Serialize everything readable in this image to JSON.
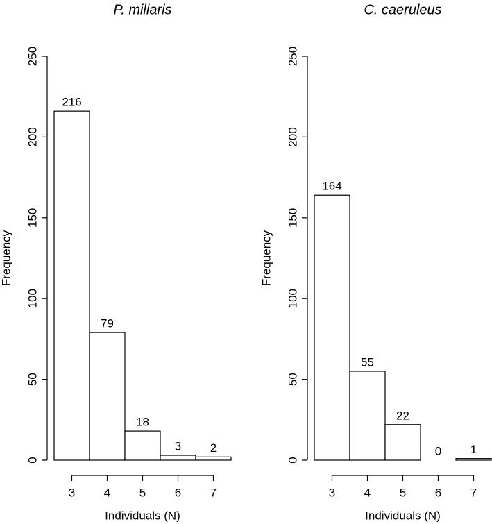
{
  "chart_data": [
    {
      "type": "bar",
      "title": "P. miliaris",
      "x_label": "Individuals (N)",
      "y_label": "Frequency",
      "categories": [
        "3",
        "4",
        "5",
        "6",
        "7"
      ],
      "values": [
        216,
        79,
        18,
        3,
        2
      ],
      "color": "#ffffff",
      "edge_color": "#000000",
      "ylim": [
        0,
        250
      ],
      "yticks": [
        0,
        50,
        100,
        150,
        200,
        250
      ]
    },
    {
      "type": "bar",
      "title": "C. caeruleus",
      "x_label": "Individuals (N)",
      "y_label": "Frequency",
      "categories": [
        "3",
        "4",
        "5",
        "6",
        "7"
      ],
      "values": [
        164,
        55,
        22,
        0,
        1
      ],
      "color": "#ffffff",
      "edge_color": "#000000",
      "ylim": [
        0,
        250
      ],
      "yticks": [
        0,
        50,
        100,
        150,
        200,
        250
      ]
    }
  ]
}
